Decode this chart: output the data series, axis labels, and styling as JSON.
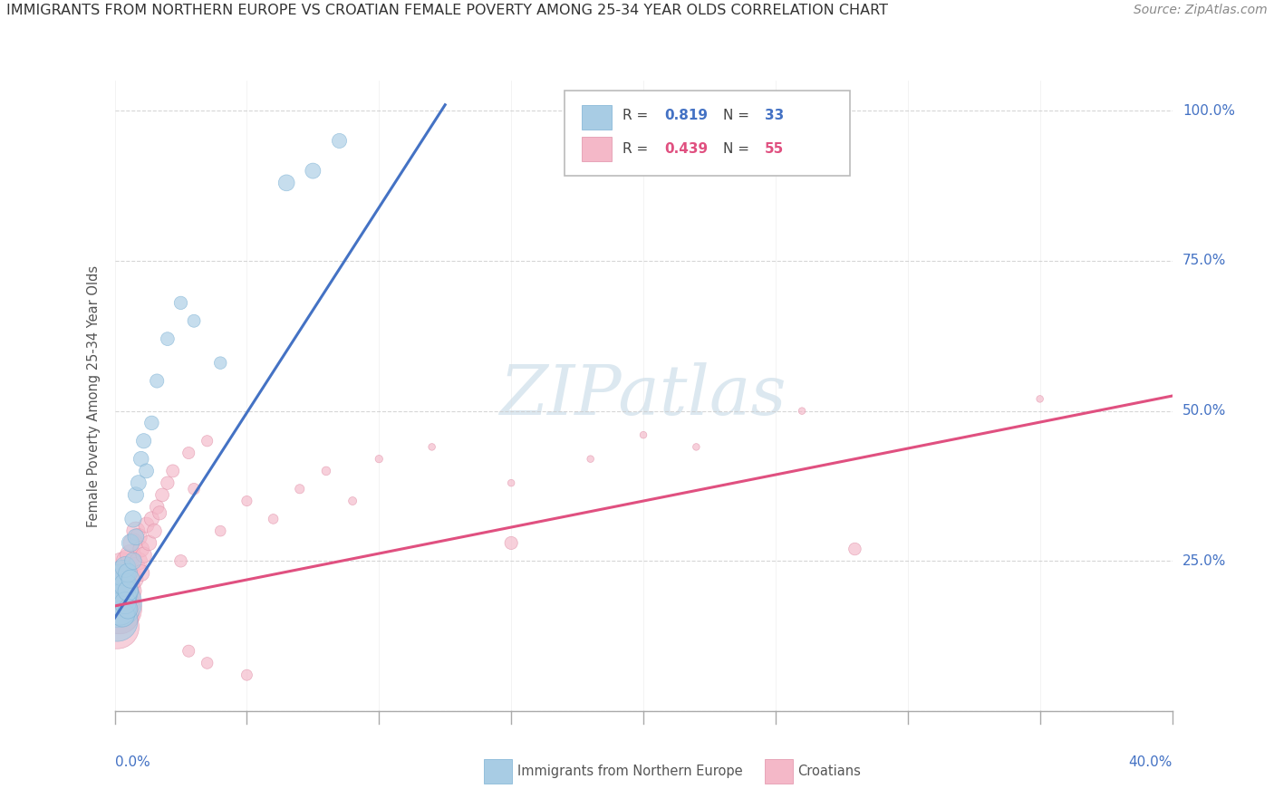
{
  "title": "IMMIGRANTS FROM NORTHERN EUROPE VS CROATIAN FEMALE POVERTY AMONG 25-34 YEAR OLDS CORRELATION CHART",
  "source": "Source: ZipAtlas.com",
  "ylabel_label": "Female Poverty Among 25-34 Year Olds",
  "legend_label1": "Immigrants from Northern Europe",
  "legend_label2": "Croatians",
  "R1": 0.819,
  "N1": 33,
  "R2": 0.439,
  "N2": 55,
  "color_blue": "#a8cce4",
  "color_blue_edge": "#7ab0d4",
  "color_blue_line": "#4472c4",
  "color_pink": "#f4b8c8",
  "color_pink_edge": "#e090a8",
  "color_pink_line": "#e05080",
  "watermark_color": "#dce8f0",
  "blue_scatter_x": [
    0.001,
    0.001,
    0.002,
    0.002,
    0.002,
    0.003,
    0.003,
    0.003,
    0.004,
    0.004,
    0.004,
    0.005,
    0.005,
    0.005,
    0.006,
    0.006,
    0.007,
    0.007,
    0.008,
    0.008,
    0.009,
    0.01,
    0.011,
    0.012,
    0.014,
    0.016,
    0.02,
    0.025,
    0.03,
    0.04,
    0.065,
    0.075,
    0.085
  ],
  "blue_scatter_y": [
    0.18,
    0.15,
    0.2,
    0.17,
    0.22,
    0.19,
    0.23,
    0.16,
    0.21,
    0.18,
    0.24,
    0.2,
    0.17,
    0.23,
    0.22,
    0.28,
    0.25,
    0.32,
    0.29,
    0.36,
    0.38,
    0.42,
    0.45,
    0.4,
    0.48,
    0.55,
    0.62,
    0.68,
    0.65,
    0.58,
    0.88,
    0.9,
    0.95
  ],
  "blue_scatter_size": [
    500,
    350,
    280,
    220,
    180,
    160,
    140,
    120,
    110,
    100,
    90,
    85,
    80,
    75,
    70,
    65,
    60,
    58,
    55,
    52,
    50,
    48,
    46,
    44,
    42,
    40,
    38,
    36,
    34,
    32,
    55,
    50,
    45
  ],
  "pink_scatter_x": [
    0.001,
    0.001,
    0.002,
    0.002,
    0.003,
    0.003,
    0.003,
    0.004,
    0.004,
    0.005,
    0.005,
    0.005,
    0.006,
    0.006,
    0.007,
    0.007,
    0.008,
    0.008,
    0.009,
    0.009,
    0.01,
    0.01,
    0.011,
    0.012,
    0.013,
    0.014,
    0.015,
    0.016,
    0.017,
    0.018,
    0.02,
    0.022,
    0.025,
    0.028,
    0.03,
    0.035,
    0.04,
    0.05,
    0.06,
    0.07,
    0.08,
    0.09,
    0.1,
    0.12,
    0.15,
    0.18,
    0.2,
    0.22,
    0.26,
    0.35,
    0.028,
    0.035,
    0.05,
    0.15,
    0.28
  ],
  "pink_scatter_y": [
    0.17,
    0.14,
    0.19,
    0.16,
    0.21,
    0.18,
    0.24,
    0.2,
    0.23,
    0.18,
    0.22,
    0.25,
    0.2,
    0.26,
    0.22,
    0.28,
    0.24,
    0.3,
    0.25,
    0.29,
    0.23,
    0.27,
    0.26,
    0.31,
    0.28,
    0.32,
    0.3,
    0.34,
    0.33,
    0.36,
    0.38,
    0.4,
    0.25,
    0.43,
    0.37,
    0.45,
    0.3,
    0.35,
    0.32,
    0.37,
    0.4,
    0.35,
    0.42,
    0.44,
    0.38,
    0.42,
    0.46,
    0.44,
    0.5,
    0.52,
    0.1,
    0.08,
    0.06,
    0.28,
    0.27
  ],
  "pink_scatter_size": [
    500,
    400,
    350,
    300,
    250,
    200,
    180,
    160,
    140,
    130,
    120,
    110,
    100,
    90,
    85,
    80,
    75,
    70,
    65,
    62,
    58,
    55,
    52,
    50,
    48,
    46,
    44,
    42,
    40,
    38,
    36,
    34,
    32,
    30,
    28,
    26,
    24,
    22,
    20,
    18,
    16,
    14,
    12,
    10,
    10,
    10,
    10,
    10,
    10,
    10,
    30,
    28,
    25,
    35,
    32
  ],
  "blue_line_x": [
    0.0,
    0.125
  ],
  "blue_line_y": [
    0.155,
    1.01
  ],
  "pink_line_x": [
    0.0,
    0.4
  ],
  "pink_line_y": [
    0.175,
    0.525
  ],
  "xlim": [
    0,
    0.4
  ],
  "ylim": [
    0,
    1.05
  ],
  "xticks": [
    0,
    0.05,
    0.1,
    0.15,
    0.2,
    0.25,
    0.3,
    0.35,
    0.4
  ],
  "yticks": [
    0,
    0.25,
    0.5,
    0.75,
    1.0
  ],
  "figsize": [
    14.06,
    8.92
  ],
  "dpi": 100
}
